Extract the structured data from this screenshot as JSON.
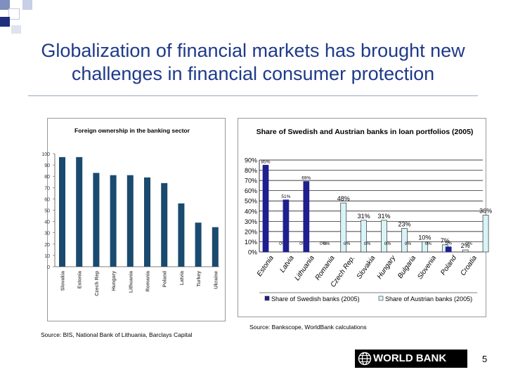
{
  "slide": {
    "title": "Globalization of financial markets has brought new challenges in financial consumer protection",
    "page_number": "5",
    "logo_text": "WORLD BANK",
    "accent_color": "#1e3a8a"
  },
  "chart_data": [
    {
      "type": "bar",
      "title": "Foreign ownership in the banking sector",
      "categories": [
        "Slovakia",
        "Estonia",
        "Czech Rep",
        "Hungary",
        "Lithuania",
        "Romania",
        "Poland",
        "Latvia",
        "Turkey",
        "Ukraine"
      ],
      "values": [
        97,
        97,
        83,
        81,
        81,
        79,
        74,
        56,
        39,
        35
      ],
      "ylim": [
        0,
        100
      ],
      "yticks": [
        "0",
        "10",
        "20",
        "30",
        "40",
        "50",
        "60",
        "70",
        "80",
        "90",
        "100"
      ],
      "color": "#1a4a6e",
      "grid": false,
      "source": "Source: BIS, National Bank of Lithuania, Barclays Capital"
    },
    {
      "type": "bar",
      "title": "Share of Swedish and Austrian banks in loan portfolios (2005)",
      "categories": [
        "Estonia",
        "Latvia",
        "Lithuania",
        "Romania",
        "Czech Rep.",
        "Slovakia",
        "Hungary",
        "Bulgaria",
        "Slovenia",
        "Poland",
        "Croatia"
      ],
      "series": [
        {
          "name": "Share of Swedish banks (2005)",
          "values": [
            85,
            51,
            69,
            0,
            0,
            0,
            0,
            0,
            0,
            5,
            0
          ],
          "labels": [
            "85%",
            "51%",
            "69%",
            "0%",
            "0%",
            "0%",
            "0%",
            "0%",
            "0%",
            "5%",
            "0%"
          ],
          "color": "#1f1f8f"
        },
        {
          "name": "Share of Austrian banks (2005)",
          "values": [
            0,
            0,
            0,
            48,
            31,
            31,
            23,
            10,
            7,
            2,
            36
          ],
          "labels": [
            "0%",
            "0%",
            "0%",
            "48%",
            "31%",
            "31%",
            "23%",
            "10%",
            "7%",
            "2%",
            "36%"
          ],
          "color": "#d8f4f8"
        }
      ],
      "ylim": [
        0,
        90
      ],
      "yticks": [
        "0%",
        "10%",
        "20%",
        "30%",
        "40%",
        "50%",
        "60%",
        "70%",
        "80%",
        "90%"
      ],
      "grid": true,
      "legend": "bottom",
      "source": "Source: Bankscope, WorldBank calculations"
    }
  ]
}
